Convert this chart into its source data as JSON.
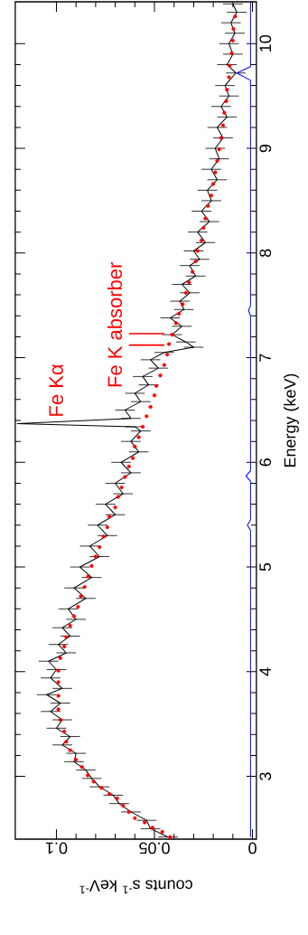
{
  "chart_data": {
    "type": "line",
    "xlabel": "counts s$^{-1}$ keV$^{-1}$",
    "ylabel": "Energy (keV)",
    "xlim": [
      0.121,
      -0.002
    ],
    "ylim": [
      2.4,
      10.4
    ],
    "xticks": [
      0,
      0.05,
      0.1
    ],
    "yticks": [
      3,
      4,
      5,
      6,
      7,
      8,
      9,
      10
    ],
    "annotations": [
      {
        "text": "Fe Kα",
        "x": 0.096,
        "y": 6.42
      },
      "Fe K absorber"
    ],
    "series": [
      {
        "color": "#000000",
        "values": [
          2.42,
          2.5,
          2.58,
          2.66,
          2.74,
          2.82,
          2.9,
          2.98,
          3.06,
          3.14,
          3.22,
          3.3,
          3.38,
          3.46,
          3.54,
          3.62,
          3.7,
          3.78,
          3.84,
          3.94,
          4.02,
          4.1,
          4.18,
          4.26,
          4.34,
          4.42,
          4.5,
          4.6,
          4.7,
          4.8,
          4.9,
          5.0,
          5.1,
          5.2,
          5.3,
          5.4,
          5.5,
          5.6,
          5.7,
          5.8,
          5.9,
          6.0,
          6.1,
          6.2,
          6.3,
          6.34,
          6.37,
          6.42,
          6.5,
          6.58,
          6.66,
          6.74,
          6.82,
          6.9,
          6.98,
          7.05,
          7.1,
          7.15,
          7.22,
          7.3,
          7.38,
          7.46,
          7.54,
          7.62,
          7.7,
          7.78,
          7.88,
          7.94,
          8.02,
          8.1,
          8.2,
          8.3,
          8.4,
          8.5,
          8.6,
          8.7,
          8.8,
          8.9,
          9.0,
          9.1,
          9.2,
          9.3,
          9.4,
          9.5,
          9.6,
          9.72,
          9.8,
          9.9,
          10.0,
          10.1,
          10.2,
          10.3,
          10.38
        ],
        "x": [
          0.043,
          0.052,
          0.054,
          0.062,
          0.068,
          0.071,
          0.078,
          0.082,
          0.085,
          0.091,
          0.09,
          0.097,
          0.093,
          0.1,
          0.097,
          0.103,
          0.098,
          0.105,
          0.097,
          0.103,
          0.1,
          0.104,
          0.095,
          0.099,
          0.093,
          0.097,
          0.09,
          0.094,
          0.085,
          0.091,
          0.082,
          0.088,
          0.078,
          0.083,
          0.074,
          0.079,
          0.07,
          0.075,
          0.066,
          0.07,
          0.062,
          0.067,
          0.058,
          0.062,
          0.057,
          0.06,
          0.12,
          0.062,
          0.065,
          0.057,
          0.06,
          0.053,
          0.056,
          0.048,
          0.052,
          0.045,
          0.03,
          0.034,
          0.041,
          0.036,
          0.042,
          0.035,
          0.037,
          0.032,
          0.036,
          0.029,
          0.032,
          0.027,
          0.03,
          0.024,
          0.028,
          0.022,
          0.026,
          0.021,
          0.023,
          0.018,
          0.021,
          0.017,
          0.019,
          0.015,
          0.018,
          0.013,
          0.016,
          0.012,
          0.014,
          0.0085,
          0.013,
          0.01,
          0.012,
          0.009,
          0.011,
          0.008,
          0.01
        ],
        "xerrors": [
          0.005,
          0.005,
          0.005,
          0.005,
          0.005,
          0.005,
          0.005,
          0.005,
          0.005,
          0.005,
          0.005,
          0.005,
          0.005,
          0.005,
          0.005,
          0.005,
          0.005,
          0.005,
          0.005,
          0.005,
          0.005,
          0.005,
          0.005,
          0.005,
          0.005,
          0.005,
          0.005,
          0.005,
          0.005,
          0.005,
          0.005,
          0.005,
          0.005,
          0.005,
          0.005,
          0.005,
          0.005,
          0.005,
          0.005,
          0.005,
          0.005,
          0.005,
          0.005,
          0.005,
          0.005,
          0.005,
          null,
          0.005,
          0.005,
          0.005,
          0.005,
          0.005,
          0.005,
          0.005,
          0.005,
          0.005,
          0.005,
          0.005,
          0.005,
          0.005,
          0.005,
          0.005,
          0.005,
          0.005,
          0.005,
          0.005,
          0.005,
          0.005,
          0.005,
          0.005,
          0.005,
          0.005,
          0.005,
          0.005,
          0.005,
          0.005,
          0.005,
          0.005,
          0.005,
          0.005,
          0.005,
          0.005,
          0.005,
          0.005,
          0.005,
          0.005,
          0.005,
          0.005,
          0.005,
          0.005,
          0.005,
          0.005,
          0.005
        ]
      },
      {
        "type": "scatter",
        "color": "#ff0000",
        "marker": "circle",
        "values": [
          2.42,
          2.47,
          2.51,
          2.56,
          2.6,
          2.66,
          2.72,
          2.79,
          2.83,
          2.89,
          2.95,
          3.01,
          3.09,
          3.16,
          3.25,
          3.33,
          3.43,
          3.54,
          3.64,
          3.77,
          3.9,
          4.01,
          4.13,
          4.24,
          4.33,
          4.44,
          4.53,
          4.62,
          4.72,
          4.81,
          4.91,
          5.01,
          5.1,
          5.19,
          5.29,
          5.38,
          5.48,
          5.57,
          5.67,
          5.76,
          5.86,
          5.96,
          6.04,
          6.15,
          6.24,
          6.34,
          6.44,
          6.53,
          6.64,
          6.73,
          6.83,
          6.93,
          7.03,
          7.13,
          7.22,
          7.33,
          7.42,
          7.51,
          7.62,
          7.72,
          7.82,
          7.92,
          8.02,
          8.12,
          8.24,
          8.33,
          8.45,
          8.55,
          8.66,
          8.77,
          8.88,
          8.99,
          9.1,
          9.22,
          9.34,
          9.45,
          9.56,
          9.68,
          9.79,
          9.91,
          10.03,
          10.14,
          10.26
        ],
        "x": [
          0.042,
          0.046,
          0.051,
          0.055,
          0.06,
          0.063,
          0.066,
          0.069,
          0.073,
          0.077,
          0.081,
          0.084,
          0.087,
          0.09,
          0.093,
          0.095,
          0.096,
          0.098,
          0.099,
          0.099,
          0.099,
          0.099,
          0.098,
          0.096,
          0.095,
          0.093,
          0.091,
          0.089,
          0.0875,
          0.0856,
          0.0838,
          0.082,
          0.08,
          0.078,
          0.076,
          0.074,
          0.073,
          0.07,
          0.0685,
          0.0667,
          0.065,
          0.063,
          0.061,
          0.06,
          0.058,
          0.056,
          0.054,
          0.052,
          0.05,
          0.049,
          0.047,
          0.045,
          0.0435,
          0.0426,
          0.041,
          0.039,
          0.0375,
          0.0356,
          0.034,
          0.0324,
          0.0306,
          0.029,
          0.028,
          0.026,
          0.025,
          0.024,
          0.0227,
          0.021,
          0.02,
          0.019,
          0.018,
          0.017,
          0.016,
          0.015,
          0.0144,
          0.0134,
          0.013,
          0.012,
          0.0116,
          0.0106,
          0.01,
          0.0097,
          0.0088
        ]
      },
      {
        "color": "#0000ff",
        "values": [
          2.42,
          3.0,
          4.0,
          5.0,
          5.35,
          5.4,
          5.45,
          5.82,
          5.87,
          5.92,
          7.4,
          7.45,
          7.5,
          9.65,
          9.72,
          9.78,
          10.4
        ],
        "x": [
          0.001,
          0.001,
          0.001,
          0.001,
          0.001,
          0.0026,
          0.001,
          0.001,
          0.0033,
          0.001,
          0.001,
          0.002,
          0.001,
          0.001,
          0.008,
          0.001,
          0.001
        ]
      },
      {
        "color": "#ff0000",
        "x": [
          0.045,
          0.063
        ],
        "values": [
          7.12,
          7.12
        ]
      },
      {
        "color": "#ff0000",
        "x": [
          0.045,
          0.063
        ],
        "values": [
          7.23,
          7.23
        ]
      }
    ]
  }
}
